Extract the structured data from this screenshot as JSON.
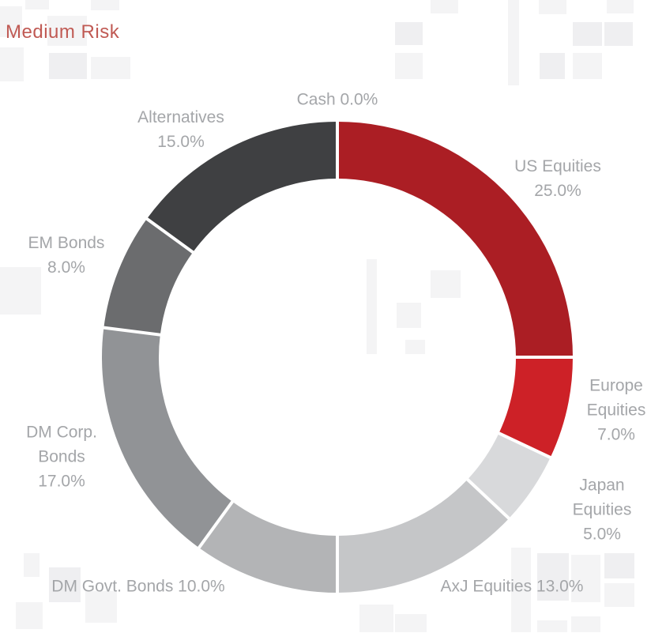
{
  "title": "Medium Risk",
  "colors": {
    "title_text": "#c05a54",
    "label_text": "#a4a6a9",
    "divider": "#ffffff",
    "watermark_light": "#f4f4f5",
    "watermark_dark": "#efeff1"
  },
  "chart_data": {
    "type": "pie",
    "subtype": "donut",
    "title": "Medium Risk",
    "start_angle_deg": 0,
    "direction": "clockwise",
    "total": 100,
    "segments": [
      {
        "name": "Cash",
        "value": 0.0,
        "label": "Cash 0.0%",
        "color": "#ffffff"
      },
      {
        "name": "US Equities",
        "value": 25.0,
        "label": "US Equities\n25.0%",
        "color": "#ab1e24"
      },
      {
        "name": "Europe Equities",
        "value": 7.0,
        "label": "Europe\nEquities\n7.0%",
        "color": "#cd2127"
      },
      {
        "name": "Japan Equities",
        "value": 5.0,
        "label": "Japan Equities\n5.0%",
        "color": "#d8d9db"
      },
      {
        "name": "AxJ Equities",
        "value": 13.0,
        "label": "AxJ Equities 13.0%",
        "color": "#c5c6c8"
      },
      {
        "name": "DM Govt. Bonds",
        "value": 10.0,
        "label": "DM Govt. Bonds 10.0%",
        "color": "#b3b4b6"
      },
      {
        "name": "DM Corp. Bonds",
        "value": 17.0,
        "label": "DM Corp.\nBonds\n17.0%",
        "color": "#919396"
      },
      {
        "name": "EM Bonds",
        "value": 8.0,
        "label": "EM Bonds\n8.0%",
        "color": "#6b6c6e"
      },
      {
        "name": "Alternatives",
        "value": 15.0,
        "label": "Alternatives\n15.0%",
        "color": "#3f4042"
      }
    ]
  }
}
